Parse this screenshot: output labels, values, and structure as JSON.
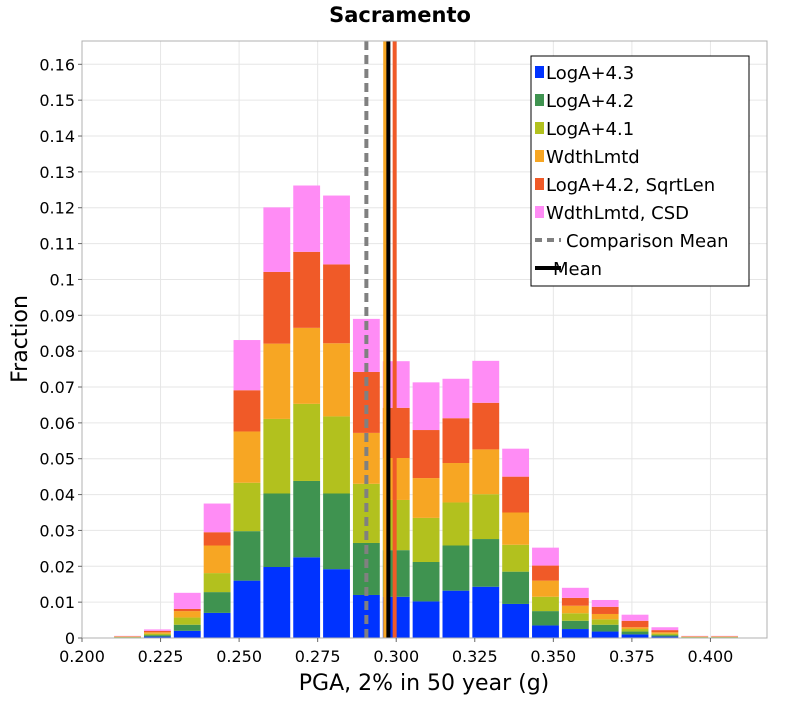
{
  "chart_data": {
    "type": "bar",
    "stacked": true,
    "title": "Sacramento",
    "xlabel": "PGA, 2% in 50 year (g)",
    "ylabel": "Fraction",
    "xlim": [
      0.2,
      0.418
    ],
    "ylim": [
      0,
      0.1665
    ],
    "grid": true,
    "legend_position": "top-right",
    "x_ticks": [
      "0.200",
      "0.225",
      "0.250",
      "0.275",
      "0.300",
      "0.325",
      "0.350",
      "0.375",
      "0.400"
    ],
    "y_ticks": [
      "0",
      "0.01",
      "0.02",
      "0.03",
      "0.04",
      "0.05",
      "0.06",
      "0.07",
      "0.08",
      "0.09",
      "0.1",
      "0.11",
      "0.12",
      "0.13",
      "0.14",
      "0.15",
      "0.16"
    ],
    "bin_centers": [
      0.2145,
      0.224,
      0.2335,
      0.243,
      0.2525,
      0.262,
      0.2715,
      0.281,
      0.2905,
      0.3,
      0.3095,
      0.319,
      0.3285,
      0.338,
      0.3475,
      0.357,
      0.3665,
      0.376,
      0.3855,
      0.395,
      0.4045
    ],
    "series": [
      {
        "name": "LogA+4.3",
        "color": "#0033ff",
        "values": [
          0.0001,
          0.0004,
          0.002,
          0.007,
          0.016,
          0.0198,
          0.0225,
          0.0192,
          0.012,
          0.0115,
          0.0102,
          0.0132,
          0.0143,
          0.0095,
          0.0035,
          0.0025,
          0.0018,
          0.001,
          0.0004,
          0.0001,
          0.0001
        ]
      },
      {
        "name": "LogA+4.2",
        "color": "#3f9350",
        "values": [
          0.0001,
          0.0004,
          0.0017,
          0.0058,
          0.0138,
          0.0205,
          0.0213,
          0.0211,
          0.0145,
          0.013,
          0.011,
          0.0126,
          0.0133,
          0.009,
          0.004,
          0.0023,
          0.0019,
          0.0008,
          0.0004,
          0.0001,
          0.0001
        ]
      },
      {
        "name": "LogA+4.1",
        "color": "#b2c11e",
        "values": [
          0.0001,
          0.0004,
          0.002,
          0.0053,
          0.0135,
          0.0208,
          0.0215,
          0.0215,
          0.0165,
          0.014,
          0.0123,
          0.012,
          0.0125,
          0.0075,
          0.004,
          0.0021,
          0.0015,
          0.0007,
          0.0004,
          0.0001,
          0.0001
        ]
      },
      {
        "name": "WdthLmtd",
        "color": "#f7a623",
        "values": [
          0.0001,
          0.0004,
          0.0018,
          0.0077,
          0.0143,
          0.021,
          0.0212,
          0.0204,
          0.0142,
          0.0117,
          0.0111,
          0.011,
          0.0125,
          0.009,
          0.0045,
          0.0021,
          0.0015,
          0.0005,
          0.0004,
          0.0001,
          0.0001
        ]
      },
      {
        "name": "LogA+4.2, SqrtLen",
        "color": "#f05a28",
        "values": [
          0.0001,
          0.0004,
          0.0006,
          0.0037,
          0.0115,
          0.02,
          0.0212,
          0.022,
          0.017,
          0.014,
          0.0134,
          0.0125,
          0.013,
          0.01,
          0.0042,
          0.0022,
          0.002,
          0.0018,
          0.0006,
          0.0001,
          0.0001
        ]
      },
      {
        "name": "WdthLmtd, CSD",
        "color": "#ff8cf5",
        "values": [
          0.0001,
          0.0004,
          0.0045,
          0.008,
          0.014,
          0.018,
          0.0185,
          0.0192,
          0.0148,
          0.013,
          0.0133,
          0.011,
          0.0117,
          0.0078,
          0.005,
          0.0028,
          0.0019,
          0.0017,
          0.0008,
          0.0001,
          0.0001
        ]
      }
    ],
    "vertical_lines": [
      {
        "name": "Comparison Mean",
        "x": 0.2905,
        "color": "#808080",
        "dashed": true
      },
      {
        "name": "Mean",
        "x": 0.2975,
        "color": "#000000",
        "dashed": false
      }
    ],
    "extra_lines": [
      {
        "x": 0.2965,
        "color": "#f7a623"
      },
      {
        "x": 0.2995,
        "color": "#f05a28"
      }
    ]
  }
}
